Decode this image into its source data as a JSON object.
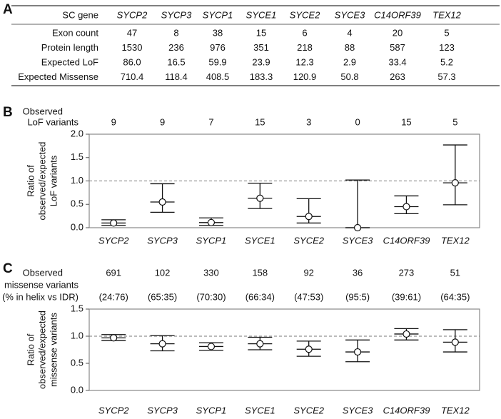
{
  "panel_labels": [
    "A",
    "B",
    "C"
  ],
  "table": {
    "header": [
      "SC gene",
      "SYCP2",
      "SYCP3",
      "SYCP1",
      "SYCE1",
      "SYCE2",
      "SYCE3",
      "C14ORF39",
      "TEX12"
    ],
    "rows": [
      [
        "Exon count",
        "47",
        "8",
        "38",
        "15",
        "6",
        "4",
        "20",
        "5"
      ],
      [
        "Protein length",
        "1530",
        "236",
        "976",
        "351",
        "218",
        "88",
        "587",
        "123"
      ],
      [
        "Expected LoF",
        "86.0",
        "16.5",
        "59.9",
        "23.9",
        "12.3",
        "2.9",
        "33.4",
        "5.2"
      ],
      [
        "Expected Missense",
        "710.4",
        "118.4",
        "408.5",
        "183.3",
        "120.9",
        "50.8",
        "263",
        "57.3"
      ]
    ]
  },
  "chart_data": [
    {
      "type": "errorbar",
      "y_label": [
        "Ratio of",
        "observed/expected",
        "LoF variants"
      ],
      "annotation_label": [
        "Observed",
        "LoF variants"
      ],
      "annotation_values": [
        9,
        9,
        7,
        15,
        3,
        0,
        15,
        5
      ],
      "categories": [
        "SYCP2",
        "SYCP3",
        "SYCP1",
        "SYCE1",
        "SYCE2",
        "SYCE3",
        "C14ORF39",
        "TEX12"
      ],
      "series": [
        {
          "values": [
            0.1,
            0.55,
            0.11,
            0.63,
            0.24,
            0,
            0.45,
            0.96
          ],
          "lower": [
            0.05,
            0.33,
            0.05,
            0.41,
            0.1,
            0,
            0.3,
            0.49
          ],
          "upper": [
            0.17,
            0.94,
            0.21,
            0.95,
            0.62,
            1.02,
            0.68,
            1.77
          ]
        }
      ],
      "ylim": [
        0,
        2
      ],
      "yticks": [
        {
          "value": 0,
          "label": "0.0"
        },
        {
          "value": 0.5,
          "label": "0.5"
        },
        {
          "value": 1,
          "label": "1.0"
        },
        {
          "value": 1.5,
          "label": "1.5"
        },
        {
          "value": 2,
          "label": "2.0"
        }
      ],
      "reference_line": 1
    },
    {
      "type": "errorbar",
      "y_label": [
        "Ratio of",
        "observed/expected",
        "missense variants"
      ],
      "annotation_label": [
        "Observed",
        "missense variants",
        "(% in helix vs IDR)"
      ],
      "annotation_values": [
        691,
        102,
        330,
        158,
        92,
        36,
        273,
        51
      ],
      "annotation_sublabels": [
        "(24:76)",
        "(65:35)",
        "(70:30)",
        "(66:34)",
        "(47:53)",
        "(95:5)",
        "(39:61)",
        "(64:35)"
      ],
      "categories": [
        "SYCP2",
        "SYCP3",
        "SYCP1",
        "SYCE1",
        "SYCE2",
        "SYCE3",
        "C14ORF39",
        "TEX12"
      ],
      "series": [
        {
          "values": [
            0.97,
            0.86,
            0.81,
            0.86,
            0.76,
            0.71,
            1.04,
            0.89
          ],
          "lower": [
            0.92,
            0.73,
            0.74,
            0.75,
            0.63,
            0.53,
            0.93,
            0.71
          ],
          "upper": [
            1.03,
            1.01,
            0.88,
            0.98,
            0.91,
            0.93,
            1.14,
            1.12
          ]
        }
      ],
      "ylim": [
        0,
        1.5
      ],
      "yticks": [
        {
          "value": 0,
          "label": "0.0"
        },
        {
          "value": 0.5,
          "label": "0.5"
        },
        {
          "value": 1,
          "label": "1.0"
        },
        {
          "value": 1.5,
          "label": "1.5"
        }
      ],
      "reference_line": 1
    }
  ]
}
